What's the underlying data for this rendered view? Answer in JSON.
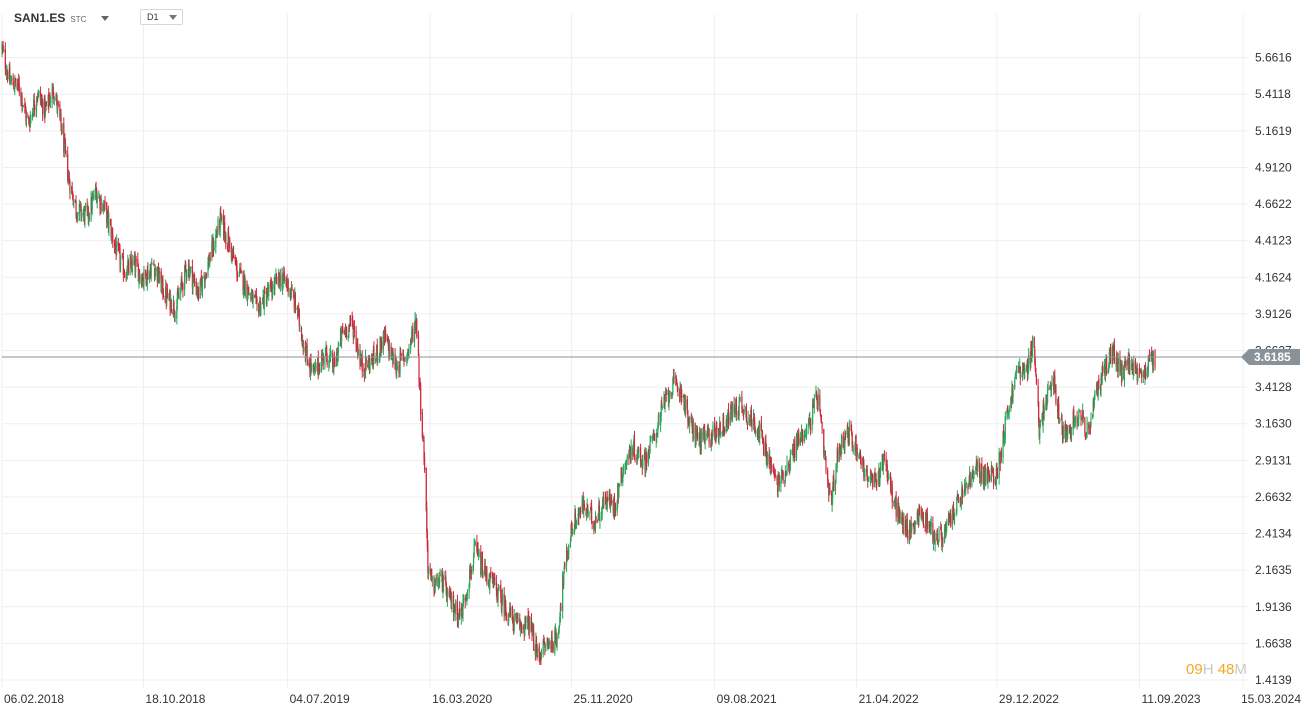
{
  "toolbar": {
    "symbol": "SAN1.ES",
    "symbol_type": "STC",
    "interval": "D1"
  },
  "timer": {
    "hours": "09",
    "hours_unit": "H",
    "minutes": "48",
    "minutes_unit": "M"
  },
  "colors": {
    "up": "#26a65b",
    "down": "#d0273b",
    "grid": "#efefef",
    "price_line": "#8a9299",
    "price_tag": "#8a9299"
  },
  "chart_data": {
    "type": "candlestick",
    "ylim": [
      1.4139,
      5.85
    ],
    "y_ticks": [
      "5.6616",
      "5.4118",
      "5.1619",
      "4.9120",
      "4.6622",
      "4.4123",
      "4.1624",
      "3.9126",
      "3.6627",
      "3.4128",
      "3.1630",
      "2.9131",
      "2.6632",
      "2.4134",
      "2.1635",
      "1.9136",
      "1.6638",
      "1.4139"
    ],
    "x_range": [
      "2018-02-06",
      "2024-03-15"
    ],
    "x_ticks": [
      {
        "date": "2018-02-06",
        "label": "06.02.2018"
      },
      {
        "date": "2018-10-18",
        "label": "18.10.2018"
      },
      {
        "date": "2019-07-04",
        "label": "04.07.2019"
      },
      {
        "date": "2020-03-16",
        "label": "16.03.2020"
      },
      {
        "date": "2020-11-25",
        "label": "25.11.2020"
      },
      {
        "date": "2021-08-09",
        "label": "09.08.2021"
      },
      {
        "date": "2022-04-21",
        "label": "21.04.2022"
      },
      {
        "date": "2022-12-29",
        "label": "29.12.2022"
      },
      {
        "date": "2023-09-11",
        "label": "11.09.2023"
      },
      {
        "date": "2024-03-15",
        "label": "15.03.2024"
      }
    ],
    "current_price": 3.6185,
    "current_price_label": "3.6185",
    "close_path": [
      [
        "2018-02-06",
        5.72
      ],
      [
        "2018-02-20",
        5.5
      ],
      [
        "2018-03-10",
        5.45
      ],
      [
        "2018-03-25",
        5.2
      ],
      [
        "2018-04-10",
        5.42
      ],
      [
        "2018-04-25",
        5.3
      ],
      [
        "2018-05-10",
        5.45
      ],
      [
        "2018-05-25",
        5.15
      ],
      [
        "2018-06-05",
        4.85
      ],
      [
        "2018-06-20",
        4.62
      ],
      [
        "2018-07-10",
        4.58
      ],
      [
        "2018-07-25",
        4.75
      ],
      [
        "2018-08-10",
        4.62
      ],
      [
        "2018-08-30",
        4.35
      ],
      [
        "2018-09-15",
        4.2
      ],
      [
        "2018-10-01",
        4.25
      ],
      [
        "2018-10-18",
        4.15
      ],
      [
        "2018-11-05",
        4.25
      ],
      [
        "2018-11-25",
        4.05
      ],
      [
        "2018-12-15",
        3.95
      ],
      [
        "2019-01-05",
        4.25
      ],
      [
        "2019-01-25",
        4.05
      ],
      [
        "2019-02-15",
        4.3
      ],
      [
        "2019-03-05",
        4.55
      ],
      [
        "2019-03-20",
        4.4
      ],
      [
        "2019-04-05",
        4.2
      ],
      [
        "2019-04-20",
        4.1
      ],
      [
        "2019-05-10",
        3.95
      ],
      [
        "2019-05-30",
        4.05
      ],
      [
        "2019-06-20",
        4.15
      ],
      [
        "2019-07-04",
        4.12
      ],
      [
        "2019-07-20",
        3.95
      ],
      [
        "2019-08-05",
        3.65
      ],
      [
        "2019-08-20",
        3.5
      ],
      [
        "2019-09-10",
        3.65
      ],
      [
        "2019-09-25",
        3.55
      ],
      [
        "2019-10-10",
        3.78
      ],
      [
        "2019-10-28",
        3.85
      ],
      [
        "2019-11-15",
        3.55
      ],
      [
        "2019-12-05",
        3.6
      ],
      [
        "2019-12-25",
        3.75
      ],
      [
        "2020-01-15",
        3.55
      ],
      [
        "2020-02-05",
        3.65
      ],
      [
        "2020-02-20",
        3.88
      ],
      [
        "2020-02-28",
        3.3
      ],
      [
        "2020-03-06",
        2.9
      ],
      [
        "2020-03-12",
        2.2
      ],
      [
        "2020-03-20",
        2.05
      ],
      [
        "2020-04-05",
        2.1
      ],
      [
        "2020-04-20",
        1.95
      ],
      [
        "2020-05-10",
        1.85
      ],
      [
        "2020-06-05",
        2.3
      ],
      [
        "2020-06-20",
        2.15
      ],
      [
        "2020-07-10",
        2.05
      ],
      [
        "2020-07-30",
        1.9
      ],
      [
        "2020-08-20",
        1.78
      ],
      [
        "2020-09-10",
        1.8
      ],
      [
        "2020-09-25",
        1.58
      ],
      [
        "2020-10-10",
        1.65
      ],
      [
        "2020-10-30",
        1.7
      ],
      [
        "2020-11-10",
        2.1
      ],
      [
        "2020-11-25",
        2.45
      ],
      [
        "2020-12-15",
        2.6
      ],
      [
        "2021-01-05",
        2.5
      ],
      [
        "2021-01-25",
        2.65
      ],
      [
        "2021-02-10",
        2.6
      ],
      [
        "2021-02-25",
        2.85
      ],
      [
        "2021-03-15",
        3.0
      ],
      [
        "2021-04-05",
        2.9
      ],
      [
        "2021-04-25",
        3.1
      ],
      [
        "2021-05-10",
        3.3
      ],
      [
        "2021-05-25",
        3.42
      ],
      [
        "2021-06-10",
        3.4
      ],
      [
        "2021-06-25",
        3.15
      ],
      [
        "2021-07-15",
        3.05
      ],
      [
        "2021-08-09",
        3.1
      ],
      [
        "2021-08-25",
        3.15
      ],
      [
        "2021-09-10",
        3.25
      ],
      [
        "2021-09-25",
        3.3
      ],
      [
        "2021-10-10",
        3.2
      ],
      [
        "2021-10-25",
        3.15
      ],
      [
        "2021-11-10",
        2.95
      ],
      [
        "2021-11-30",
        2.75
      ],
      [
        "2021-12-15",
        2.85
      ],
      [
        "2022-01-05",
        3.05
      ],
      [
        "2022-01-25",
        3.15
      ],
      [
        "2022-02-10",
        3.35
      ],
      [
        "2022-02-20",
        3.0
      ],
      [
        "2022-03-05",
        2.6
      ],
      [
        "2022-03-20",
        3.0
      ],
      [
        "2022-04-05",
        3.1
      ],
      [
        "2022-04-21",
        3.0
      ],
      [
        "2022-05-10",
        2.8
      ],
      [
        "2022-05-25",
        2.75
      ],
      [
        "2022-06-10",
        2.95
      ],
      [
        "2022-06-25",
        2.65
      ],
      [
        "2022-07-10",
        2.5
      ],
      [
        "2022-07-25",
        2.42
      ],
      [
        "2022-08-10",
        2.55
      ],
      [
        "2022-08-25",
        2.5
      ],
      [
        "2022-09-10",
        2.38
      ],
      [
        "2022-09-25",
        2.4
      ],
      [
        "2022-10-10",
        2.55
      ],
      [
        "2022-10-25",
        2.65
      ],
      [
        "2022-11-10",
        2.78
      ],
      [
        "2022-11-25",
        2.85
      ],
      [
        "2022-12-10",
        2.8
      ],
      [
        "2022-12-29",
        2.82
      ],
      [
        "2023-01-15",
        3.2
      ],
      [
        "2023-02-05",
        3.55
      ],
      [
        "2023-02-20",
        3.5
      ],
      [
        "2023-03-05",
        3.75
      ],
      [
        "2023-03-15",
        3.1
      ],
      [
        "2023-03-25",
        3.3
      ],
      [
        "2023-04-10",
        3.45
      ],
      [
        "2023-04-25",
        3.1
      ],
      [
        "2023-05-10",
        3.15
      ],
      [
        "2023-05-25",
        3.25
      ],
      [
        "2023-06-10",
        3.1
      ],
      [
        "2023-06-25",
        3.35
      ],
      [
        "2023-07-10",
        3.55
      ],
      [
        "2023-07-25",
        3.65
      ],
      [
        "2023-08-10",
        3.5
      ],
      [
        "2023-08-25",
        3.6
      ],
      [
        "2023-09-11",
        3.45
      ],
      [
        "2023-09-25",
        3.55
      ],
      [
        "2023-10-10",
        3.62
      ]
    ]
  }
}
